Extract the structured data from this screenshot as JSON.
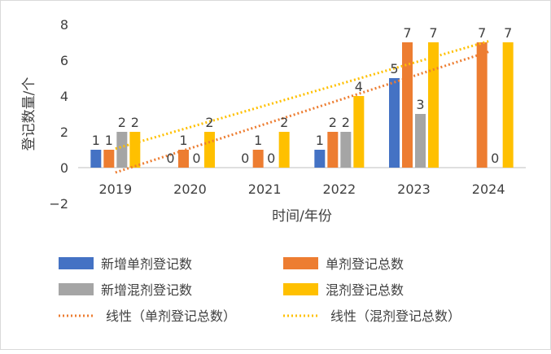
{
  "chart_data": {
    "type": "bar",
    "title": "",
    "xlabel": "时间/年份",
    "ylabel": "登记数量/个",
    "ylim": [
      -2,
      8
    ],
    "yticks": [
      -2,
      0,
      2,
      4,
      6,
      8
    ],
    "ytick_labels": [
      "−2",
      "0",
      "2",
      "4",
      "6",
      "8"
    ],
    "grid": false,
    "legend_position": "bottom",
    "categories": [
      "2019",
      "2020",
      "2021",
      "2022",
      "2023",
      "2024"
    ],
    "series": [
      {
        "name": "新增单剂登记数",
        "color": "#4472C4",
        "values": [
          1,
          0,
          0,
          1,
          5,
          null
        ],
        "labels": [
          "1",
          "0",
          "0",
          "1",
          "5",
          ""
        ]
      },
      {
        "name": "单剂登记总数",
        "color": "#ED7D31",
        "values": [
          1,
          1,
          1,
          2,
          7,
          7
        ],
        "labels": [
          "1",
          "1",
          "1",
          "2",
          "7",
          "7"
        ]
      },
      {
        "name": "新增混剂登记数",
        "color": "#A5A5A5",
        "values": [
          2,
          0,
          0,
          2,
          3,
          0
        ],
        "labels": [
          "2",
          "0",
          "0",
          "2",
          "3",
          "0"
        ]
      },
      {
        "name": "混剂登记总数",
        "color": "#FFC000",
        "values": [
          2,
          2,
          2,
          4,
          7,
          7
        ],
        "labels": [
          "2",
          "2",
          "2",
          "4",
          "7",
          "7"
        ]
      }
    ],
    "trendlines": [
      {
        "name": "线性（单剂登记总数）",
        "color": "#ED7D31",
        "start": -0.27,
        "end": 6.47
      },
      {
        "name": "线性（混剂登记总数）",
        "color": "#FFC000",
        "start": 1.06,
        "end": 7.06
      }
    ]
  }
}
